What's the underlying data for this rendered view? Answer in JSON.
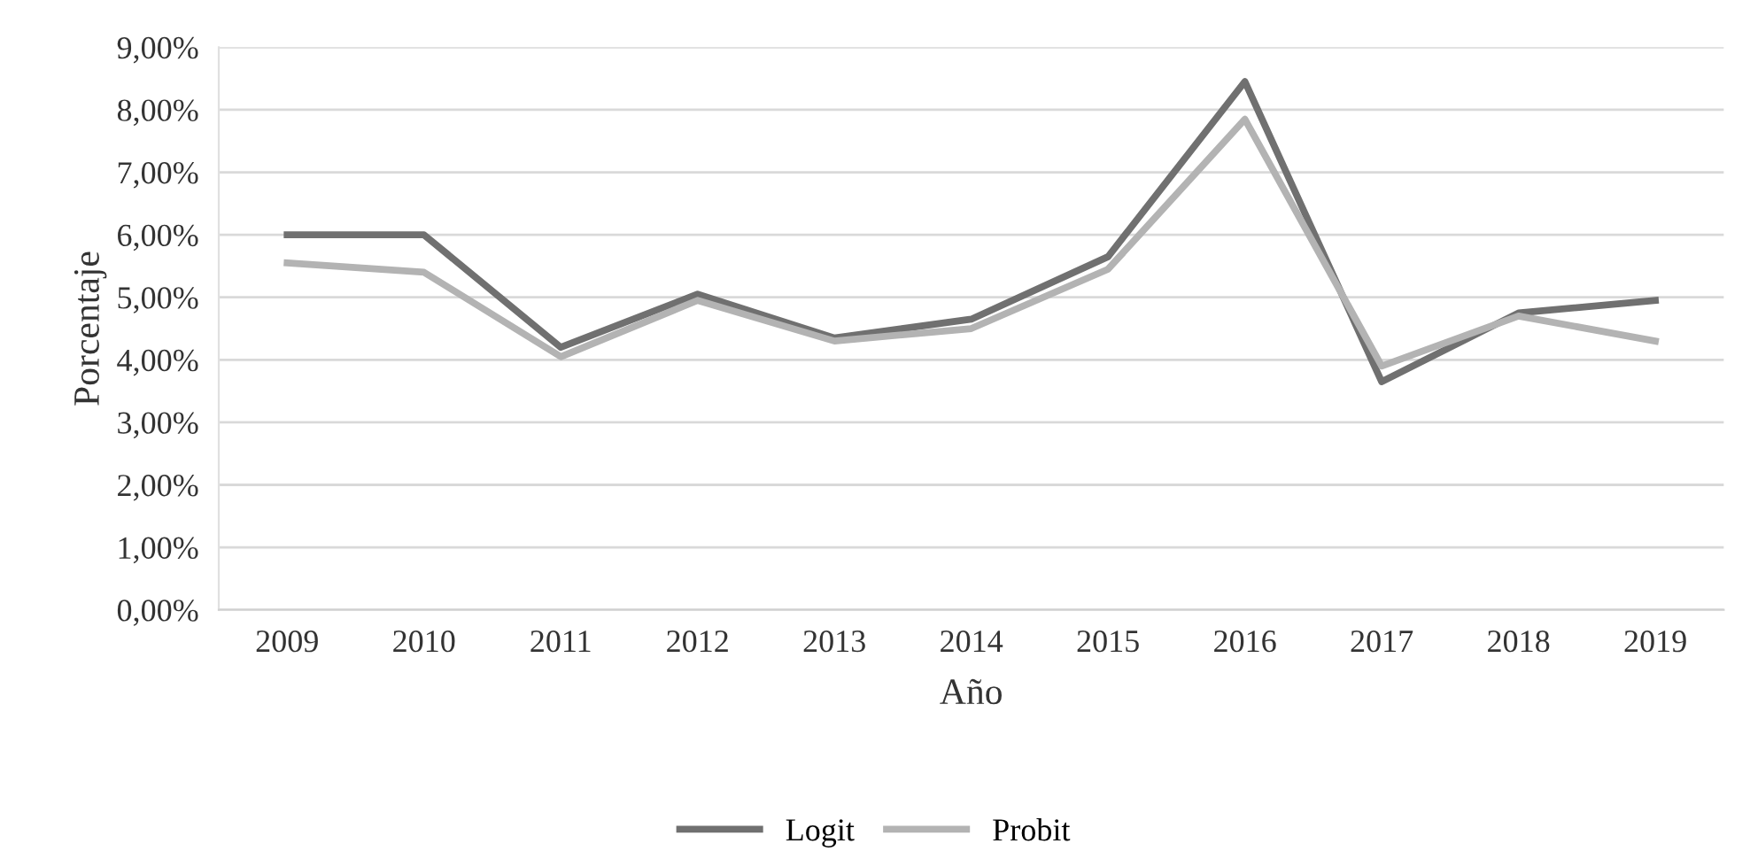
{
  "chart_data": {
    "type": "line",
    "xlabel": "Año",
    "ylabel": "Porcentaje",
    "categories": [
      "2009",
      "2010",
      "2011",
      "2012",
      "2013",
      "2014",
      "2015",
      "2016",
      "2017",
      "2018",
      "2019"
    ],
    "series": [
      {
        "name": "Logit",
        "color": "#707070",
        "values": [
          6.0,
          6.0,
          4.2,
          5.05,
          4.35,
          4.65,
          5.65,
          8.45,
          3.65,
          4.75,
          4.95
        ]
      },
      {
        "name": "Probit",
        "color": "#b3b3b3",
        "values": [
          5.55,
          5.4,
          4.05,
          4.95,
          4.3,
          4.5,
          5.45,
          7.85,
          3.9,
          4.7,
          4.3
        ]
      }
    ],
    "ylim": [
      0,
      9
    ],
    "yticks": [
      {
        "value": 0,
        "label": "0,00%"
      },
      {
        "value": 1,
        "label": "1,00%"
      },
      {
        "value": 2,
        "label": "2,00%"
      },
      {
        "value": 3,
        "label": "3,00%"
      },
      {
        "value": 4,
        "label": "4,00%"
      },
      {
        "value": 5,
        "label": "5,00%"
      },
      {
        "value": 6,
        "label": "6,00%"
      },
      {
        "value": 7,
        "label": "7,00%"
      },
      {
        "value": 8,
        "label": "8,00%"
      },
      {
        "value": 9,
        "label": "9,00%"
      }
    ],
    "grid": "y",
    "legend": "bottom",
    "marker": "none",
    "line_style": "solid"
  }
}
